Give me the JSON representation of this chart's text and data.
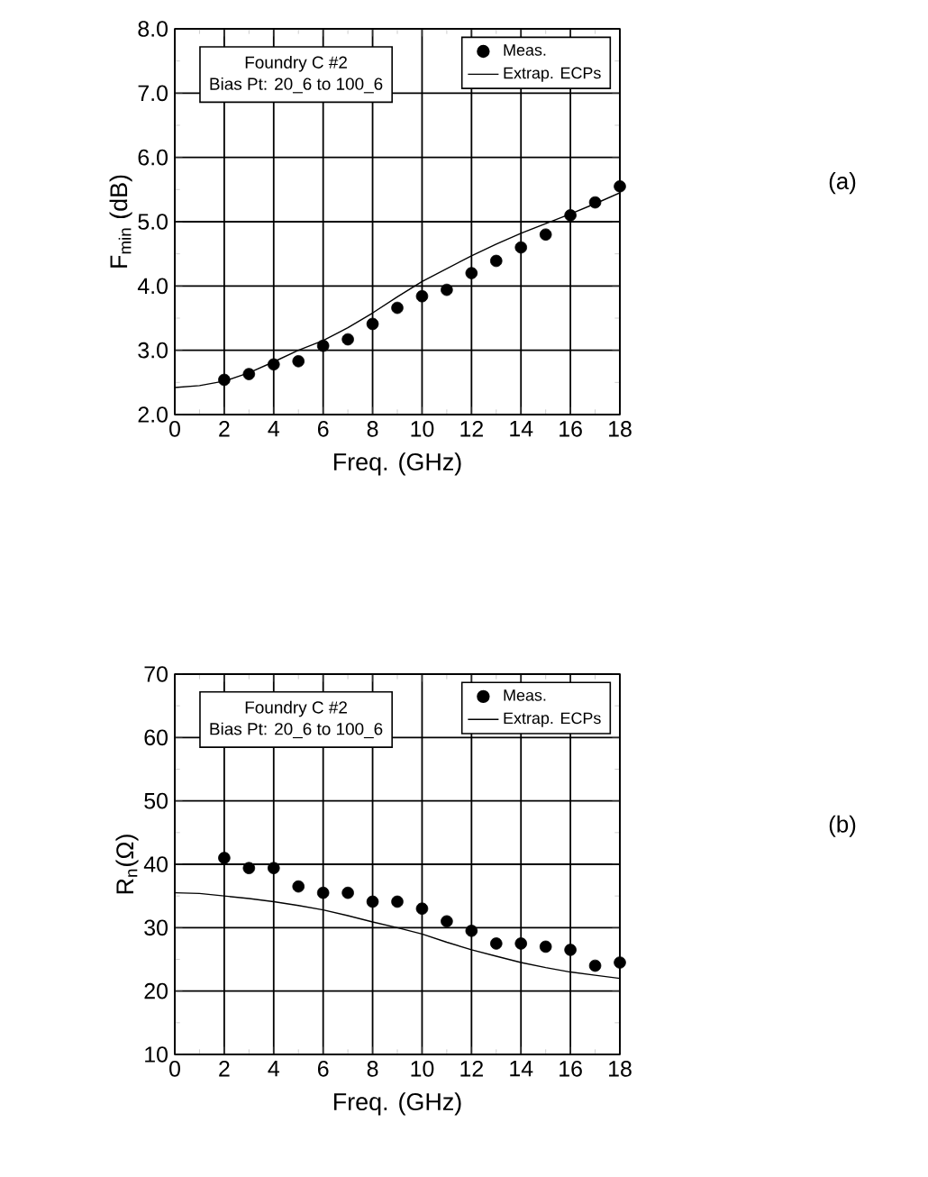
{
  "chart_data": [
    {
      "type": "scatter",
      "xlabel": "Freq. (GHz)",
      "ylabel": "F$_{min}$ (dB)",
      "xlim": [
        0,
        18
      ],
      "ylim": [
        2,
        8
      ],
      "xticks": [
        0,
        2,
        4,
        6,
        8,
        10,
        12,
        14,
        16,
        18
      ],
      "yticks": [
        {
          "value": 2,
          "label": "2.0"
        },
        {
          "value": 3,
          "label": "3.0"
        },
        {
          "value": 4,
          "label": "4.0"
        },
        {
          "value": 5,
          "label": "5.0"
        },
        {
          "value": 6,
          "label": "6.0"
        },
        {
          "value": 7,
          "label": "7.0"
        },
        {
          "value": 8,
          "label": "8.0"
        }
      ],
      "grid": true,
      "legend": "top right",
      "annotations": [
        "Foundry C #2",
        "Bias Pt: 20_6 to 100_6",
        "(a)"
      ],
      "series": [
        {
          "name": "Meas.",
          "marker": "circle",
          "color": "#000000",
          "x": [
            2,
            3,
            4,
            5,
            6,
            7,
            8,
            9,
            10,
            11,
            12,
            13,
            14,
            15,
            16,
            17,
            18
          ],
          "values": [
            2.54,
            2.63,
            2.78,
            2.83,
            3.07,
            3.17,
            3.41,
            3.66,
            3.84,
            3.94,
            4.2,
            4.39,
            4.6,
            4.8,
            5.1,
            5.3,
            5.55
          ]
        },
        {
          "name": "Extrap. ECPs",
          "type": "line",
          "line_style": "solid",
          "color": "#000000",
          "x": [
            0,
            1,
            2,
            3,
            4,
            5,
            6,
            7,
            8,
            9,
            10,
            11,
            12,
            13,
            14,
            15,
            16,
            17,
            18
          ],
          "values": [
            2.42,
            2.45,
            2.52,
            2.65,
            2.82,
            3.0,
            3.15,
            3.35,
            3.58,
            3.83,
            4.07,
            4.27,
            4.47,
            4.65,
            4.82,
            4.97,
            5.12,
            5.28,
            5.45
          ]
        }
      ]
    },
    {
      "type": "scatter",
      "xlabel": "Freq. (GHz)",
      "ylabel": "R$_{n}$(Ω)",
      "xlim": [
        0,
        18
      ],
      "ylim": [
        10,
        70
      ],
      "xticks": [
        0,
        2,
        4,
        6,
        8,
        10,
        12,
        14,
        16,
        18
      ],
      "yticks": [
        10,
        20,
        30,
        40,
        50,
        60,
        70
      ],
      "grid": true,
      "legend": "top right",
      "annotations": [
        "Foundry C #2",
        "Bias Pt: 20_6 to 100_6",
        "(b)"
      ],
      "series": [
        {
          "name": "Meas.",
          "marker": "circle",
          "color": "#000000",
          "x": [
            2,
            3,
            4,
            5,
            6,
            7,
            8,
            9,
            10,
            11,
            12,
            13,
            14,
            15,
            16,
            17,
            18
          ],
          "values": [
            41.0,
            39.4,
            39.4,
            36.5,
            35.5,
            35.5,
            34.1,
            34.1,
            33.0,
            31.0,
            29.5,
            27.5,
            27.5,
            27.0,
            26.5,
            24.0,
            24.5
          ]
        },
        {
          "name": "Extrap. ECPs",
          "type": "line",
          "line_style": "solid",
          "color": "#000000",
          "x": [
            0,
            1,
            2,
            3,
            4,
            5,
            6,
            7,
            8,
            9,
            10,
            11,
            12,
            13,
            14,
            15,
            16,
            17,
            18
          ],
          "values": [
            35.5,
            35.4,
            35.0,
            34.6,
            34.1,
            33.5,
            32.8,
            31.9,
            30.9,
            30.0,
            29.0,
            27.7,
            26.5,
            25.5,
            24.5,
            23.7,
            23.0,
            22.5,
            22.0
          ]
        }
      ]
    }
  ]
}
